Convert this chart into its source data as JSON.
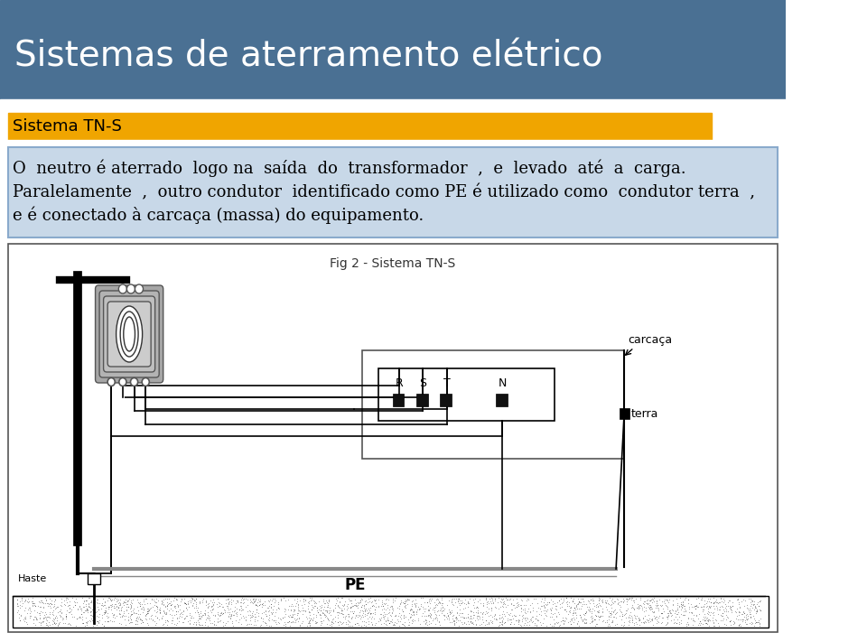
{
  "title": "Sistemas de aterramento elétrico",
  "subtitle": "Sistema TN-S",
  "fig_caption": "Fig 2 - Sistema TN-S",
  "label_carcaca": "carcaça",
  "label_terra": "terra",
  "label_haste": "Haste",
  "label_pe": "PE",
  "header_bg": "#4a7093",
  "subtitle_bg": "#f0a500",
  "body_bg": "#c8d8e8",
  "body_border": "#8aaacc",
  "title_color": "#ffffff",
  "subtitle_color": "#000000",
  "body_color": "#000000",
  "title_fontsize": 28,
  "subtitle_fontsize": 13,
  "body_fontsize": 13
}
